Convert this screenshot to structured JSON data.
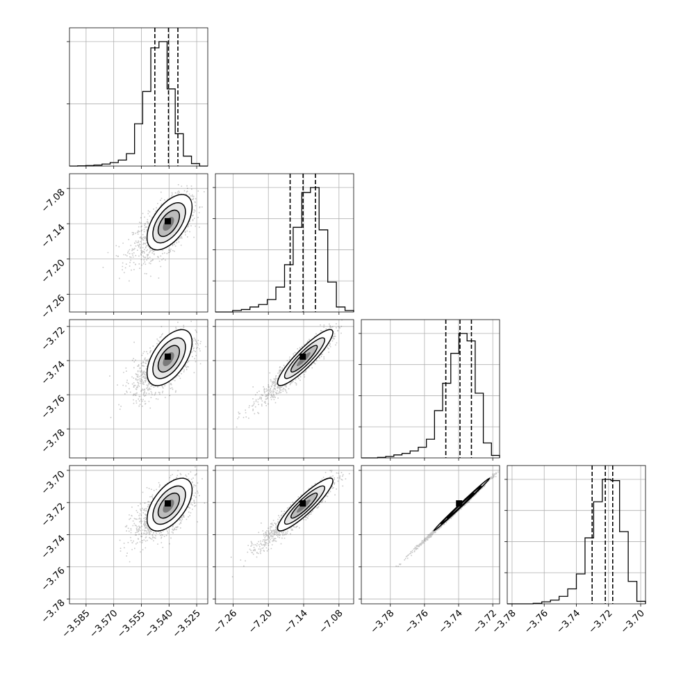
{
  "chart_data": {
    "type": "corner",
    "grid": true,
    "title": "",
    "parameters": [
      {
        "name": "",
        "range": [
          -3.594,
          -3.519
        ],
        "ticks": [
          -3.585,
          -3.57,
          -3.555,
          -3.54,
          -3.525
        ],
        "tick_labels": [
          "−3.585",
          "−3.570",
          "−3.555",
          "−3.540",
          "−3.525"
        ],
        "quantiles": [
          -3.5477,
          -3.5403,
          -3.5352
        ],
        "histogram": [
          0.0,
          0.002,
          0.004,
          0.008,
          0.016,
          0.028,
          0.048,
          0.1,
          0.34,
          0.6,
          0.95,
          1.0,
          0.62,
          0.26,
          0.08,
          0.02,
          0.0
        ],
        "hist_ticks": [
          0.5,
          1.0
        ]
      },
      {
        "name": "",
        "range": [
          -7.29,
          -7.055
        ],
        "ticks": [
          -7.26,
          -7.2,
          -7.14,
          -7.08
        ],
        "tick_labels": [
          "−7.26",
          "−7.20",
          "−7.14",
          "−7.08"
        ],
        "quantiles": [
          -7.163,
          -7.141,
          -7.12
        ],
        "histogram": [
          0.0,
          0.0,
          0.012,
          0.02,
          0.04,
          0.06,
          0.1,
          0.2,
          0.38,
          0.68,
          0.96,
          1.0,
          0.66,
          0.24,
          0.04,
          0.012
        ],
        "hist_ticks": [
          0.25,
          0.5,
          0.75,
          1.0
        ]
      },
      {
        "name": "",
        "range": [
          -3.797,
          -3.716
        ],
        "ticks": [
          -3.78,
          -3.76,
          -3.74,
          -3.72
        ],
        "tick_labels": [
          "−3.78",
          "−3.76",
          "−3.74",
          "−3.72"
        ],
        "quantiles": [
          -3.7475,
          -3.7392,
          -3.7325
        ],
        "histogram": [
          0.0,
          0.0,
          0.004,
          0.012,
          0.024,
          0.036,
          0.056,
          0.086,
          0.15,
          0.38,
          0.6,
          0.84,
          1.0,
          0.94,
          0.52,
          0.12,
          0.02
        ],
        "hist_ticks": [
          0.25,
          0.5,
          0.75,
          1.0
        ]
      },
      {
        "name": "",
        "range": [
          -3.783,
          -3.697
        ],
        "ticks": [
          -3.78,
          -3.76,
          -3.74,
          -3.72,
          -3.7
        ],
        "tick_labels": [
          "−3.78",
          "−3.76",
          "−3.74",
          "−3.72",
          "−3.70"
        ],
        "quantiles": [
          -3.7302,
          -3.722,
          -3.7174
        ],
        "histogram": [
          0.0,
          0.0,
          0.0,
          0.004,
          0.016,
          0.03,
          0.06,
          0.12,
          0.24,
          0.53,
          0.82,
          1.0,
          0.99,
          0.58,
          0.18,
          0.02
        ],
        "hist_ticks": [
          0.25,
          0.5,
          0.75,
          1.0
        ]
      }
    ],
    "joint_distributions": [
      {
        "x": 0,
        "y": 1,
        "mean": [
          -3.5405,
          -7.141
        ],
        "sd": [
          0.0061,
          0.0235
        ],
        "corr": 0.55
      },
      {
        "x": 0,
        "y": 2,
        "mean": [
          -3.5405,
          -3.7395
        ],
        "sd": [
          0.0061,
          0.0082
        ],
        "corr": 0.55
      },
      {
        "x": 0,
        "y": 3,
        "mean": [
          -3.5405,
          -3.7225
        ],
        "sd": [
          0.0061,
          0.0082
        ],
        "corr": 0.55
      },
      {
        "x": 1,
        "y": 2,
        "mean": [
          -7.141,
          -3.7395
        ],
        "sd": [
          0.0235,
          0.0082
        ],
        "corr": 0.9
      },
      {
        "x": 1,
        "y": 3,
        "mean": [
          -7.141,
          -3.7225
        ],
        "sd": [
          0.0235,
          0.0082
        ],
        "corr": 0.9
      },
      {
        "x": 2,
        "y": 3,
        "mean": [
          -3.7395,
          -3.7225
        ],
        "sd": [
          0.0082,
          0.0082
        ],
        "corr": 0.997
      }
    ]
  }
}
